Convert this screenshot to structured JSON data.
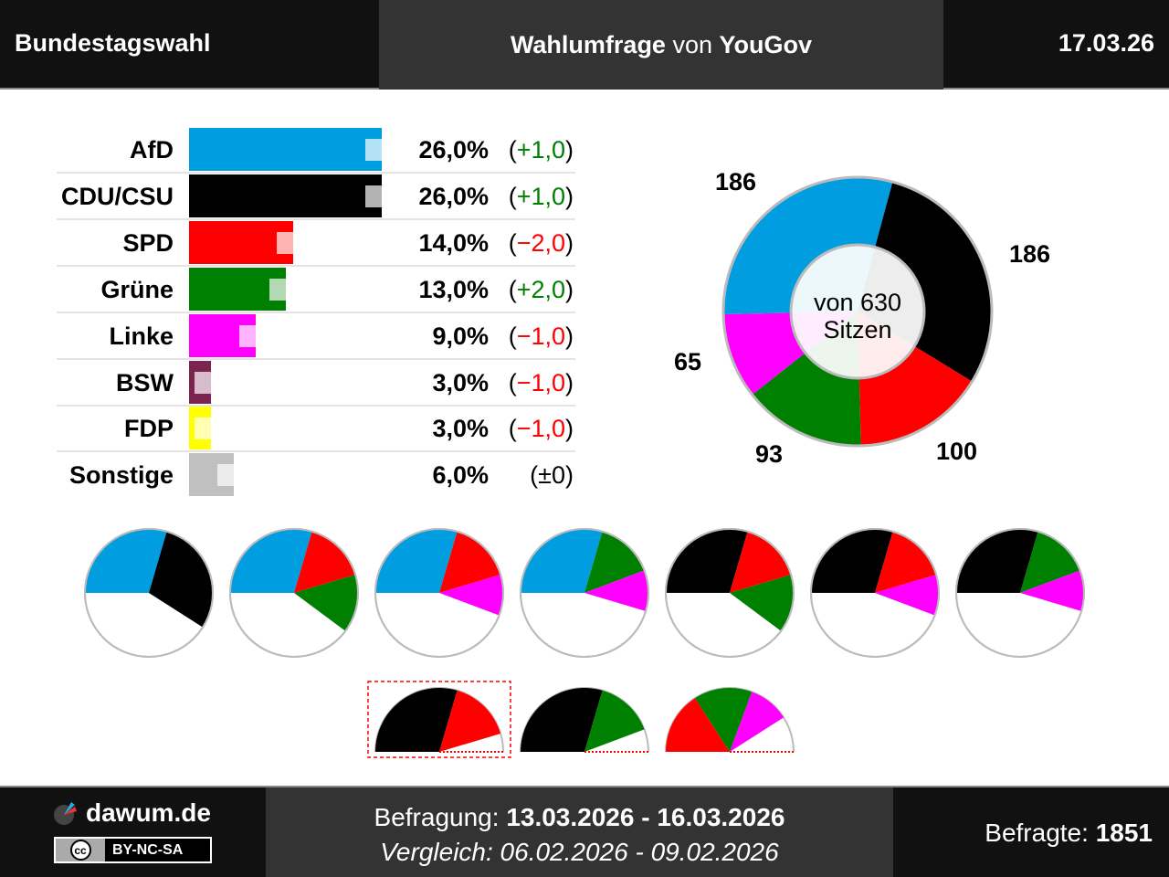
{
  "header": {
    "left": "Bundestagswahl",
    "title_a": "Wahlumfrage",
    "title_b": "von",
    "title_c": "YouGov",
    "date": "17.03.26"
  },
  "chart_data": [
    {
      "type": "bar",
      "categories": [
        "AfD",
        "CDU/CSU",
        "SPD",
        "Grüne",
        "Linke",
        "BSW",
        "FDP",
        "Sonstige"
      ],
      "values": [
        26.0,
        26.0,
        14.0,
        13.0,
        9.0,
        3.0,
        3.0,
        6.0
      ],
      "labels": [
        "26,0%",
        "26,0%",
        "14,0%",
        "13,0%",
        "9,0%",
        "3,0%",
        "3,0%",
        "6,0%"
      ],
      "changes": [
        "+1,0",
        "+1,0",
        "−2,0",
        "+2,0",
        "−1,0",
        "−1,0",
        "−1,0",
        "±0"
      ],
      "colors": [
        "#009ee0",
        "#000000",
        "#ff0000",
        "#008000",
        "#ff00ff",
        "#7b2450",
        "#ffff00",
        "#c0c0c0"
      ],
      "change_colors": [
        "#008000",
        "#008000",
        "#ff0000",
        "#008000",
        "#ff0000",
        "#ff0000",
        "#ff0000",
        "#000000"
      ]
    },
    {
      "type": "pie",
      "title": "von 630 Sitzen",
      "categories": [
        "AfD",
        "CDU/CSU",
        "SPD",
        "Grüne",
        "Linke"
      ],
      "values": [
        186,
        186,
        100,
        93,
        65
      ],
      "colors": [
        "#009ee0",
        "#000000",
        "#ff0000",
        "#008000",
        "#ff00ff"
      ]
    }
  ],
  "coalitions": {
    "full": [
      [
        "AfD",
        "CDU/CSU"
      ],
      [
        "AfD",
        "SPD",
        "Grüne"
      ],
      [
        "AfD",
        "SPD",
        "Linke"
      ],
      [
        "AfD",
        "Grüne",
        "Linke"
      ],
      [
        "CDU/CSU",
        "SPD",
        "Grüne"
      ],
      [
        "CDU/CSU",
        "SPD",
        "Linke"
      ],
      [
        "CDU/CSU",
        "Grüne",
        "Linke"
      ]
    ],
    "partial": [
      [
        "CDU/CSU",
        "SPD"
      ],
      [
        "CDU/CSU",
        "Grüne"
      ],
      [
        "SPD",
        "Grüne",
        "Linke"
      ]
    ],
    "highlighted_partial": 0
  },
  "footer": {
    "site": "dawum.de",
    "license": "BY-NC-SA",
    "cc": "cc",
    "survey_label": "Befragung:",
    "survey_dates": "13.03.2026 - 16.03.2026",
    "compare": "Vergleich: 06.02.2026 - 09.02.2026",
    "resp_label": "Befragte:",
    "resp_value": "1851"
  }
}
